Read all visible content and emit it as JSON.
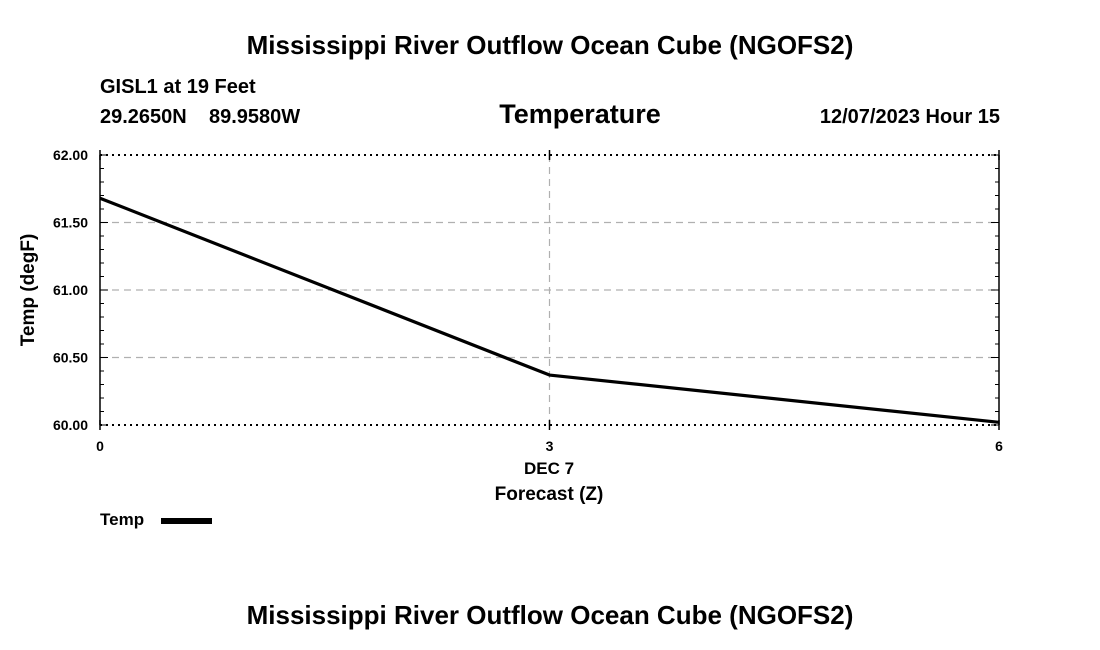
{
  "page_title": "Mississippi River Outflow Ocean Cube (NGOFS2)",
  "footer_title": "Mississippi River Outflow Ocean Cube (NGOFS2)",
  "station": {
    "name_depth": "GISL1 at 19 Feet",
    "lat": "29.2650N",
    "lon": "89.9580W"
  },
  "timestamp": "12/07/2023 Hour 15",
  "colors": {
    "line": "#000000",
    "grid": "#b0b0b0",
    "axis": "#000000"
  },
  "chart_data": {
    "type": "line",
    "title": "Temperature",
    "xlabel": "Forecast (Z)",
    "ylabel": "Temp (degF)",
    "date_label": "DEC 7",
    "xlim": [
      0,
      6
    ],
    "ylim": [
      60.0,
      62.0
    ],
    "x_ticks": [
      0,
      3,
      6
    ],
    "x_tick_labels": [
      "0",
      "3",
      "6"
    ],
    "y_ticks": [
      60.0,
      60.5,
      61.0,
      61.5,
      62.0
    ],
    "y_tick_labels": [
      "60.00",
      "60.50",
      "61.00",
      "61.50",
      "62.00"
    ],
    "grid": true,
    "legend": [
      "Temp"
    ],
    "legend_position": "bottom-left",
    "series": [
      {
        "name": "Temp",
        "x": [
          0,
          3,
          6
        ],
        "values": [
          61.68,
          60.37,
          60.02
        ]
      }
    ]
  }
}
